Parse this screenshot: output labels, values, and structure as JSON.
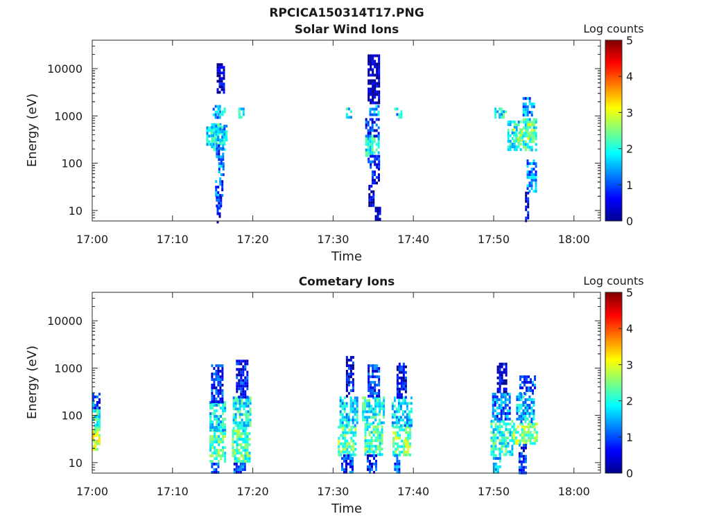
{
  "figure": {
    "title": "RPCICA150314T17.PNG"
  },
  "colormap_stops": [
    "#00008f",
    "#0000ff",
    "#007fff",
    "#00ffff",
    "#7fff7f",
    "#ffff00",
    "#ff7f00",
    "#ff0000",
    "#7f0000"
  ],
  "chart_data": [
    {
      "type": "heatmap",
      "title": "Solar Wind Ions",
      "xlabel": "Time",
      "ylabel": "Energy (eV)",
      "yscale": "log",
      "ylim": [
        6,
        40000
      ],
      "x_ticks": [
        "17:00",
        "17:10",
        "17:20",
        "17:30",
        "17:40",
        "17:50",
        "18:00"
      ],
      "x_range_minutes": [
        0,
        63.3
      ],
      "y_ticks": [
        10,
        100,
        1000,
        10000
      ],
      "y_tick_labels": [
        "10",
        "100",
        "1000",
        "10000"
      ],
      "colorbar": {
        "label": "Log counts",
        "range": [
          0,
          5
        ],
        "ticks": [
          "0",
          "1",
          "2",
          "3",
          "4",
          "5"
        ]
      },
      "x_tick_labels_shown": true,
      "cells": [
        [
          14.2,
          15.2,
          250,
          600,
          1.6
        ],
        [
          14.8,
          16.4,
          200,
          700,
          2.0
        ],
        [
          15.3,
          16.8,
          300,
          650,
          1.5
        ],
        [
          15.0,
          16.0,
          900,
          1700,
          1.4
        ],
        [
          15.6,
          16.4,
          1100,
          1500,
          2.0
        ],
        [
          15.4,
          16.3,
          120,
          250,
          1.0
        ],
        [
          15.7,
          16.4,
          50,
          120,
          1.4
        ],
        [
          15.3,
          16.1,
          20,
          50,
          1.1
        ],
        [
          15.4,
          16.0,
          12,
          20,
          0.7
        ],
        [
          15.5,
          15.8,
          6,
          12,
          0.4
        ],
        [
          15.5,
          16.5,
          3000,
          13000,
          0.3
        ],
        [
          18.2,
          18.9,
          1000,
          1500,
          1.9
        ],
        [
          31.6,
          32.3,
          900,
          1500,
          1.6
        ],
        [
          34.0,
          35.8,
          150,
          400,
          1.9
        ],
        [
          34.3,
          35.6,
          80,
          150,
          0.8
        ],
        [
          34.0,
          35.8,
          400,
          900,
          0.8
        ],
        [
          34.5,
          35.6,
          1000,
          1700,
          1.4
        ],
        [
          34.8,
          35.8,
          40,
          80,
          0.6
        ],
        [
          34.4,
          35.1,
          12,
          40,
          0.3
        ],
        [
          35.2,
          35.8,
          6,
          12,
          0.2
        ],
        [
          34.3,
          35.6,
          2000,
          20000,
          0.2
        ],
        [
          37.6,
          38.4,
          1000,
          1500,
          1.7
        ],
        [
          50.1,
          51.4,
          1000,
          1500,
          1.9
        ],
        [
          51.7,
          53.3,
          200,
          800,
          1.9
        ],
        [
          52.4,
          53.5,
          300,
          550,
          2.6
        ],
        [
          53.6,
          55.3,
          200,
          900,
          2.0
        ],
        [
          54.2,
          55.1,
          350,
          700,
          2.7
        ],
        [
          53.6,
          55.1,
          1000,
          2500,
          1.3
        ],
        [
          54.1,
          55.3,
          25,
          120,
          1.3
        ],
        [
          53.9,
          54.4,
          6,
          25,
          0.5
        ]
      ]
    },
    {
      "type": "heatmap",
      "title": "Cometary Ions",
      "xlabel": "Time",
      "ylabel": "Energy (eV)",
      "yscale": "log",
      "ylim": [
        6,
        40000
      ],
      "x_ticks": [
        "17:00",
        "17:10",
        "17:20",
        "17:30",
        "17:40",
        "17:50",
        "18:00"
      ],
      "x_range_minutes": [
        0,
        63.3
      ],
      "y_ticks": [
        10,
        100,
        1000,
        10000
      ],
      "y_tick_labels": [
        "10",
        "100",
        "1000",
        "10000"
      ],
      "colorbar": {
        "label": "Log counts",
        "range": [
          0,
          5
        ],
        "ticks": [
          "0",
          "1",
          "2",
          "3",
          "4",
          "5"
        ]
      },
      "x_tick_labels_shown": true,
      "cells": [
        [
          0.0,
          0.9,
          20,
          60,
          2.8
        ],
        [
          0.0,
          0.9,
          60,
          150,
          2.0
        ],
        [
          0.0,
          0.9,
          150,
          300,
          1.0
        ],
        [
          14.6,
          16.5,
          10,
          50,
          2.3
        ],
        [
          14.6,
          16.6,
          50,
          200,
          1.8
        ],
        [
          14.8,
          16.3,
          200,
          1200,
          0.8
        ],
        [
          14.8,
          15.8,
          6,
          10,
          1.0
        ],
        [
          17.4,
          19.6,
          10,
          50,
          2.2
        ],
        [
          17.5,
          19.8,
          50,
          250,
          1.9
        ],
        [
          17.9,
          19.3,
          250,
          1500,
          0.7
        ],
        [
          17.6,
          19.0,
          6,
          10,
          1.0
        ],
        [
          30.6,
          32.8,
          15,
          60,
          2.3
        ],
        [
          30.8,
          33.0,
          60,
          250,
          1.7
        ],
        [
          31.6,
          32.5,
          250,
          1800,
          0.5
        ],
        [
          31.0,
          32.5,
          6,
          15,
          0.9
        ],
        [
          33.9,
          36.0,
          15,
          70,
          2.2
        ],
        [
          33.6,
          36.2,
          70,
          250,
          2.0
        ],
        [
          34.3,
          35.8,
          250,
          1200,
          0.8
        ],
        [
          34.2,
          35.3,
          6,
          15,
          0.8
        ],
        [
          37.4,
          39.6,
          15,
          60,
          2.4
        ],
        [
          37.3,
          39.8,
          60,
          250,
          1.7
        ],
        [
          37.9,
          39.1,
          250,
          1300,
          0.5
        ],
        [
          37.6,
          38.3,
          6,
          15,
          1.1
        ],
        [
          49.6,
          52.3,
          15,
          80,
          2.0
        ],
        [
          49.8,
          52.1,
          80,
          300,
          1.2
        ],
        [
          50.4,
          51.6,
          300,
          1300,
          0.3
        ],
        [
          49.9,
          50.7,
          6,
          15,
          1.6
        ],
        [
          52.4,
          55.3,
          25,
          70,
          2.5
        ],
        [
          52.8,
          55.1,
          70,
          300,
          1.5
        ],
        [
          53.2,
          55.1,
          300,
          700,
          1.0
        ],
        [
          53.1,
          54.1,
          6,
          25,
          0.8
        ]
      ]
    }
  ]
}
